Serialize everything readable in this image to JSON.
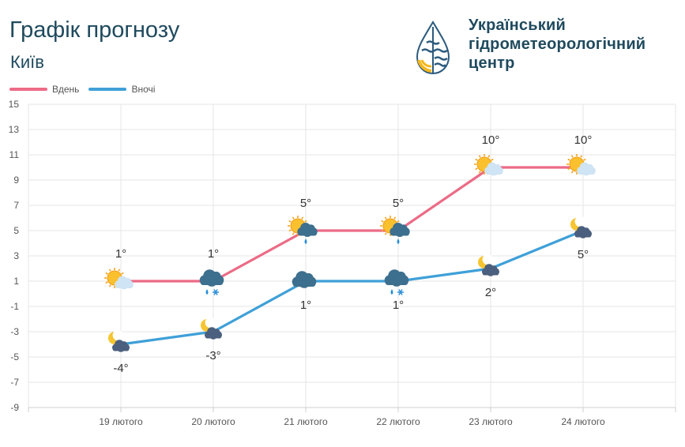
{
  "header": {
    "title": "Графік прогнозу",
    "city": "Київ"
  },
  "org": {
    "line1": "Український",
    "line2": "гідрометеорологічний",
    "line3": "центр"
  },
  "colors": {
    "day": "#ec6b86",
    "night": "#3fa0d8",
    "text": "#1f4a5e",
    "logo_blue": "#2c5a7e",
    "logo_yellow": "#f5b71c"
  },
  "chart_data": {
    "type": "line",
    "title": "Графік прогнозу",
    "categories": [
      "19 лютого",
      "20 лютого",
      "21 лютого",
      "22 лютого",
      "23 лютого",
      "24 лютого"
    ],
    "ylim": [
      -9,
      15
    ],
    "yticks": [
      15,
      13,
      11,
      9,
      7,
      5,
      3,
      1,
      -1,
      -3,
      -5,
      -7,
      -9
    ],
    "grid": true,
    "legend": "top-left",
    "series": [
      {
        "name": "Вдень",
        "color": "#ec6b86",
        "values": [
          1,
          1,
          5,
          5,
          10,
          10
        ],
        "labels": [
          "1°",
          "1°",
          "5°",
          "5°",
          "10°",
          "10°"
        ],
        "icons": [
          "sun-cloud-icon",
          "cloud-rain-snow-icon",
          "sun-cloud-rain-icon",
          "sun-cloud-rain-icon",
          "sun-cloud-icon",
          "sun-cloud-icon"
        ]
      },
      {
        "name": "Вночі",
        "color": "#3fa0d8",
        "values": [
          -4,
          -3,
          1,
          1,
          2,
          5
        ],
        "labels": [
          "-4°",
          "-3°",
          "1°",
          "1°",
          "2°",
          "5°"
        ],
        "icons": [
          "moon-cloud-icon",
          "moon-cloud-icon",
          "cloud-icon",
          "cloud-rain-snow-icon",
          "moon-cloud-icon",
          "moon-cloud-icon"
        ]
      }
    ]
  }
}
